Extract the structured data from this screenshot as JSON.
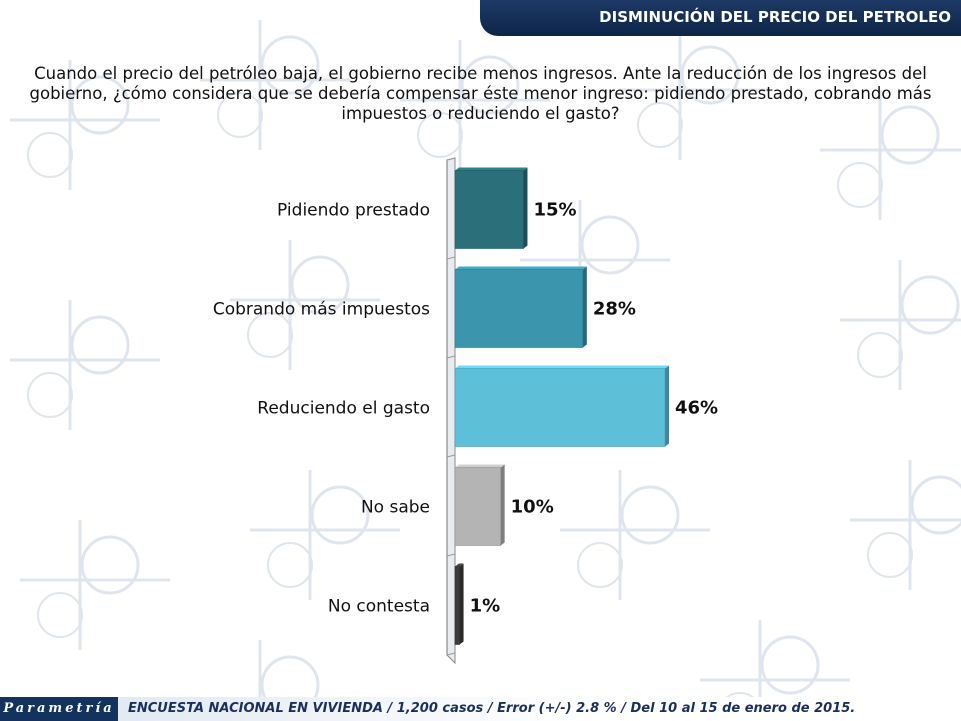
{
  "header": {
    "title": "DISMINUCIÓN DEL PRECIO DEL PETROLEO"
  },
  "question": "Cuando el precio del petróleo baja, el gobierno recibe menos ingresos. Ante la reducción de los ingresos del gobierno, ¿cómo considera que se debería compensar éste menor ingreso: pidiendo prestado, cobrando más impuestos o reduciendo el gasto?",
  "chart_data": {
    "type": "bar",
    "orientation": "horizontal",
    "categories": [
      "Pidiendo prestado",
      "Cobrando más impuestos",
      "Reduciendo el gasto",
      "No sabe",
      "No contesta"
    ],
    "values": [
      15,
      28,
      46,
      10,
      1
    ],
    "value_labels": [
      "15%",
      "28%",
      "46%",
      "10%",
      "1%"
    ],
    "colors": [
      "#2a6f7a",
      "#3a95ad",
      "#5ec0d8",
      "#b4b4b4",
      "#3c3c3c"
    ],
    "xlim": [
      0,
      50
    ],
    "grid": false,
    "legend": "none"
  },
  "footer": {
    "logo": "Parametría",
    "note": "ENCUESTA NACIONAL EN VIVIENDA / 1,200 casos / Error (+/-) 2.8 % / Del 10 al 15 de enero de 2015."
  }
}
